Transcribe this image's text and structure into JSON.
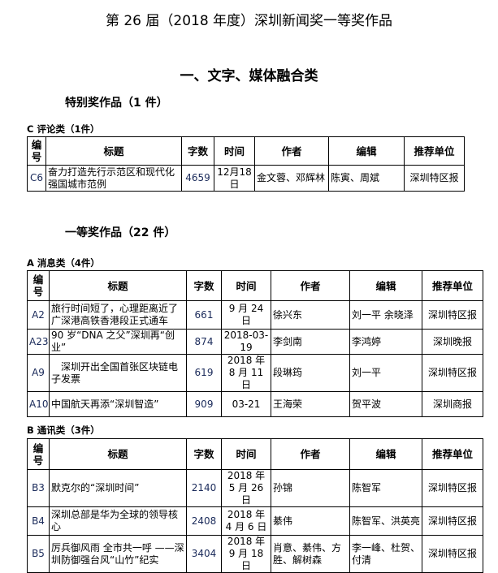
{
  "title": "第 26 届（2018 年度）深圳新闻奖一等奖作品",
  "section": "一、文字、媒体融合类",
  "special": {
    "heading": "特别奖作品（1 件）",
    "categories": [
      {
        "label": "C 评论类（1件）",
        "rows": [
          {
            "id": "C6",
            "title": "奋力打造先行示范区和现代化强国城市范例",
            "words": "4659",
            "date": "12月18日",
            "author": "金文蓉、邓辉林",
            "editor": "陈寅、周斌",
            "unit": "深圳特区报"
          }
        ]
      }
    ]
  },
  "headers": {
    "id": "编号",
    "title": "标题",
    "words": "字数",
    "date": "时间",
    "author": "作者",
    "editor": "编辑",
    "unit": "推荐单位"
  },
  "first": {
    "heading": "一等奖作品（22 件）",
    "categories": [
      {
        "label": "A 消息类（4件）",
        "rows": [
          {
            "id": "A2",
            "title": "旅行时间短了，心理距离近了 广深港高铁香港段正式通车",
            "words": "661",
            "date": "9 月 24 日",
            "author": "徐兴东",
            "editor": "刘一平 余晓泽",
            "unit": "深圳特区报"
          },
          {
            "id": "A23",
            "title": "90 岁“DNA 之父”深圳再“创业”",
            "words": "874",
            "date": "2018-03-19",
            "author": "李剑南",
            "editor": "李鸿婷",
            "unit": "深圳晚报"
          },
          {
            "id": "A9",
            "title": "　深圳开出全国首张区块链电子发票",
            "words": "619",
            "date": "2018 年 8 月 11 日",
            "author": "段琳筠",
            "editor": "刘一平",
            "unit": "深圳特区报"
          },
          {
            "id": "A10",
            "title": "中国航天再添“深圳智造”",
            "words": "909",
            "date": "03-21",
            "author": "王海荣",
            "editor": "贺平波",
            "unit": "深圳商报"
          }
        ]
      },
      {
        "label": "B 通讯类（3件）",
        "rows": [
          {
            "id": "B3",
            "title": "默克尔的“深圳时间”",
            "words": "2140",
            "date": "2018 年 5 月 26 日",
            "author": "孙锦",
            "editor": "陈智军",
            "unit": "深圳特区报"
          },
          {
            "id": "B4",
            "title": "深圳总部是华为全球的领导核心",
            "words": "2408",
            "date": "2018 年 4 月 6 日",
            "author": "綦伟",
            "editor": "陈智军、洪英亮",
            "unit": "深圳特区报"
          },
          {
            "id": "B5",
            "title": "厉兵御风雨 全市共一呼 ——深圳防御强台风“山竹”纪实",
            "words": "3404",
            "date": "2018 年 9 月 18 日",
            "author": "肖意、綦伟、方胜、解树森",
            "editor": "李一峰、杜贺、付清",
            "unit": "深圳特区报"
          }
        ]
      }
    ]
  }
}
